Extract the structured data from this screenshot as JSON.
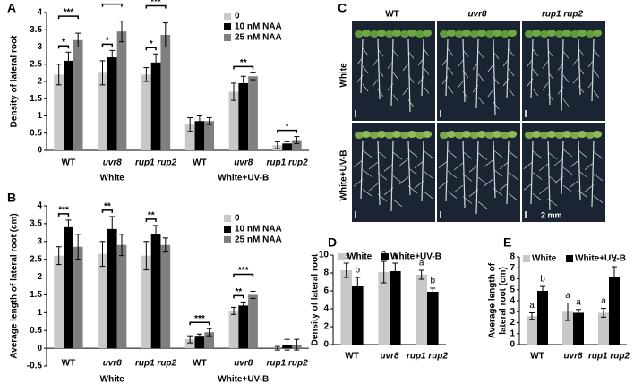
{
  "chart_data": [
    {
      "type": "bar",
      "panel_label": "A",
      "ylabel": [
        "Density of lateral root"
      ],
      "categories": [
        "WT",
        "uvr8",
        "rup1 rup2",
        "WT",
        "uvr8",
        "rup1 rup2"
      ],
      "italic": [
        false,
        true,
        true,
        false,
        true,
        true
      ],
      "groups": [
        "White",
        "White+UV-B"
      ],
      "series": [
        {
          "name": "0",
          "color": "#c8c8c8",
          "values": [
            2.2,
            2.25,
            2.2,
            0.75,
            1.7,
            0.15
          ],
          "errors": [
            0.3,
            0.35,
            0.2,
            0.2,
            0.25,
            0.1
          ]
        },
        {
          "name": "10 nM NAA",
          "color": "#000000",
          "values": [
            2.6,
            2.7,
            2.55,
            0.85,
            1.95,
            0.2
          ],
          "errors": [
            0.25,
            0.2,
            0.25,
            0.15,
            0.2,
            0.05
          ]
        },
        {
          "name": "25 nM NAA",
          "color": "#7f7f7f",
          "values": [
            3.2,
            3.45,
            3.35,
            0.85,
            2.15,
            0.3
          ],
          "errors": [
            0.2,
            0.3,
            0.35,
            0.1,
            0.1,
            0.1
          ]
        }
      ],
      "ylim": [
        0,
        4
      ],
      "yticks": [
        0,
        0.5,
        1,
        1.5,
        2,
        2.5,
        3,
        3.5,
        4
      ],
      "legend": "upper right",
      "annotations": [
        {
          "category": 0,
          "series": [
            0,
            1
          ],
          "text": "*"
        },
        {
          "category": 0,
          "series": [
            0,
            2
          ],
          "text": "***"
        },
        {
          "category": 1,
          "series": [
            0,
            1
          ],
          "text": "*"
        },
        {
          "category": 1,
          "series": [
            0,
            2
          ],
          "text": "***"
        },
        {
          "category": 2,
          "series": [
            0,
            1
          ],
          "text": "*"
        },
        {
          "category": 2,
          "series": [
            0,
            2
          ],
          "text": "***"
        },
        {
          "category": 4,
          "series": [
            0,
            2
          ],
          "text": "**"
        },
        {
          "category": 5,
          "series": [
            0,
            2
          ],
          "text": "*"
        }
      ]
    },
    {
      "type": "bar",
      "panel_label": "B",
      "ylabel": [
        "Average length of  lateral root (cm)"
      ],
      "categories": [
        "WT",
        "uvr8",
        "rup1 rup2",
        "WT",
        "uvr8",
        "rup1 rup2"
      ],
      "italic": [
        false,
        true,
        true,
        false,
        true,
        true
      ],
      "groups": [
        "White",
        "White+UV-B"
      ],
      "series": [
        {
          "name": "0",
          "color": "#c8c8c8",
          "values": [
            2.6,
            2.65,
            2.6,
            0.25,
            1.05,
            0
          ],
          "errors": [
            0.25,
            0.35,
            0.4,
            0.1,
            0.1,
            0.05
          ]
        },
        {
          "name": "10 nM NAA",
          "color": "#000000",
          "values": [
            3.4,
            3.35,
            3.2,
            0.35,
            1.2,
            0.1
          ],
          "errors": [
            0.2,
            0.35,
            0.25,
            0.05,
            0.1,
            0.15
          ]
        },
        {
          "name": "25 nM NAA",
          "color": "#7f7f7f",
          "values": [
            2.85,
            2.9,
            2.9,
            0.45,
            1.5,
            0.1
          ],
          "errors": [
            0.35,
            0.3,
            0.2,
            0.1,
            0.1,
            0.15
          ]
        }
      ],
      "ylim": [
        -0.5,
        4
      ],
      "yticks": [
        -0.5,
        0,
        0.5,
        1,
        1.5,
        2,
        2.5,
        3,
        3.5,
        4
      ],
      "legend": "upper right",
      "annotations": [
        {
          "category": 0,
          "series": [
            0,
            1
          ],
          "text": "***"
        },
        {
          "category": 1,
          "series": [
            0,
            1
          ],
          "text": "**"
        },
        {
          "category": 2,
          "series": [
            0,
            1
          ],
          "text": "**"
        },
        {
          "category": 3,
          "series": [
            0,
            2
          ],
          "text": "***"
        },
        {
          "category": 4,
          "series": [
            0,
            1
          ],
          "text": "**"
        },
        {
          "category": 4,
          "series": [
            0,
            2
          ],
          "text": "***"
        }
      ]
    },
    {
      "type": "bar",
      "panel_label": "D",
      "ylabel": [
        "Density of lateral root"
      ],
      "categories": [
        "WT",
        "uvr8",
        "rup1 rup2"
      ],
      "italic": [
        false,
        true,
        true
      ],
      "series": [
        {
          "name": "White",
          "color": "#c8c8c8",
          "values": [
            8.3,
            8.1,
            7.8
          ],
          "errors": [
            0.8,
            1.2,
            0.5
          ],
          "letters": [
            "a",
            "a",
            "a"
          ]
        },
        {
          "name": "White+UV-B",
          "color": "#000000",
          "values": [
            6.5,
            8.2,
            5.9
          ],
          "errors": [
            1.0,
            0.9,
            0.4
          ],
          "letters": [
            "b",
            "a",
            "b"
          ]
        }
      ],
      "ylim": [
        0,
        10
      ],
      "yticks": [
        0,
        2,
        4,
        6,
        8,
        10
      ],
      "legend": "top"
    },
    {
      "type": "bar",
      "panel_label": "E",
      "ylabel": [
        "Average length of",
        "lateral root (cm)"
      ],
      "categories": [
        "WT",
        "uvr8",
        "rup1 rup2"
      ],
      "italic": [
        false,
        true,
        true
      ],
      "series": [
        {
          "name": "White",
          "color": "#c8c8c8",
          "values": [
            2.6,
            3.0,
            2.9
          ],
          "errors": [
            0.3,
            0.8,
            0.4
          ],
          "letters": [
            "a",
            "a",
            "a"
          ]
        },
        {
          "name": "White+UV-B",
          "color": "#000000",
          "values": [
            4.9,
            2.9,
            6.2
          ],
          "errors": [
            0.4,
            0.3,
            0.9
          ],
          "letters": [
            "b",
            "a",
            "c"
          ]
        }
      ],
      "ylim": [
        0,
        8
      ],
      "yticks": [
        0,
        1,
        2,
        3,
        4,
        5,
        6,
        7,
        8
      ],
      "legend": "top"
    }
  ],
  "photo_panel": {
    "panel_label": "C",
    "columns": [
      "WT",
      "uvr8",
      "rup1 rup2"
    ],
    "rows": [
      "White",
      "White+UV-B"
    ],
    "scale_bar": "2 mm"
  }
}
